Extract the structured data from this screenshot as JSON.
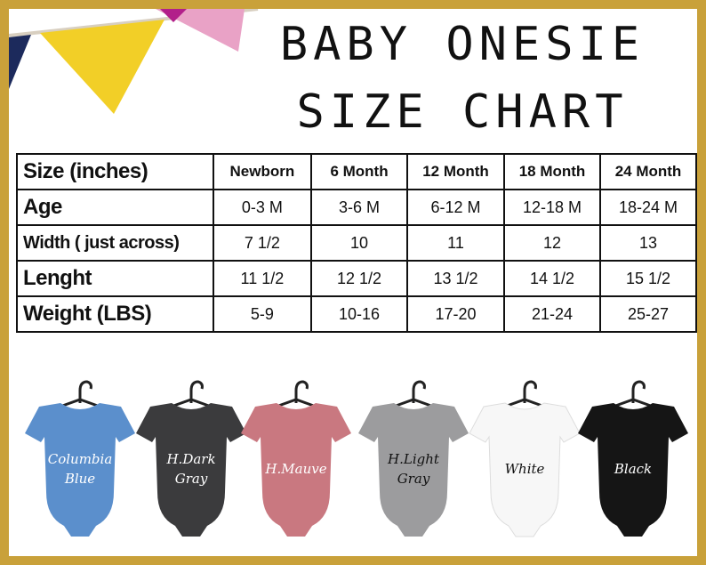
{
  "title": [
    "BABY ONESIE",
    "SIZE CHART"
  ],
  "table": {
    "header": [
      "Size (inches)",
      "Newborn",
      "6 Month",
      "12 Month",
      "18 Month",
      "24 Month"
    ],
    "rows": [
      [
        "Age",
        "0-3 M",
        "3-6 M",
        "6-12 M",
        "12-18 M",
        "18-24 M"
      ],
      [
        "Width ( just across)",
        "7 1/2",
        "10",
        "11",
        "12",
        "13"
      ],
      [
        "Lenght",
        "11 1/2",
        "12 1/2",
        "13 1/2",
        "14 1/2",
        "15 1/2"
      ],
      [
        "Weight (LBS)",
        "5-9",
        "10-16",
        "17-20",
        "21-24",
        "25-27"
      ]
    ]
  },
  "onesies": [
    {
      "label": [
        "Columbia",
        "Blue"
      ]
    },
    {
      "label": [
        "H.Dark",
        "Gray"
      ]
    },
    {
      "label": [
        "H.Mauve"
      ]
    },
    {
      "label": [
        "H.Light",
        "Gray"
      ]
    },
    {
      "label": [
        "White"
      ]
    },
    {
      "label": [
        "Black"
      ]
    }
  ]
}
